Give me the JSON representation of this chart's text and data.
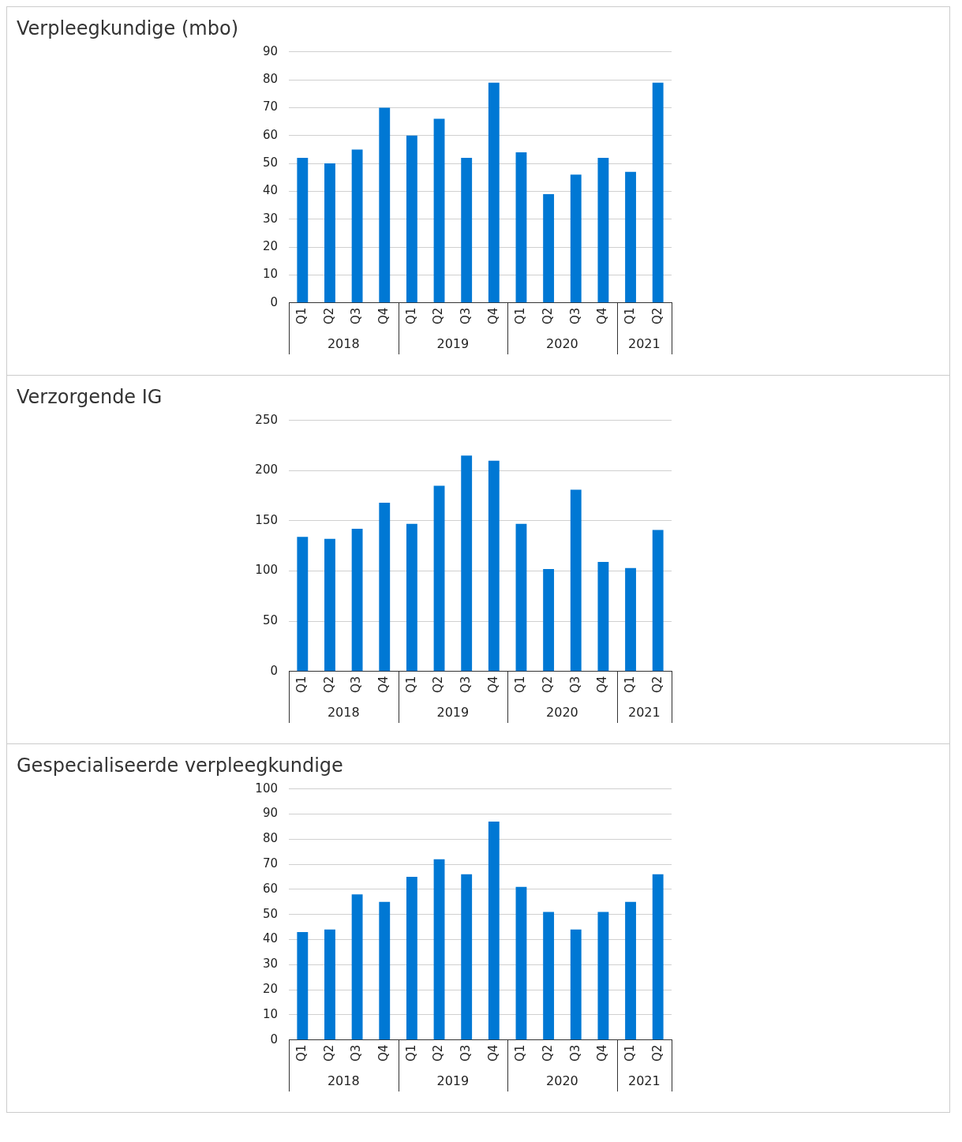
{
  "chart_data": [
    {
      "type": "bar",
      "title": "Verpleegkundige (mbo)",
      "categories": [
        "Q1",
        "Q2",
        "Q3",
        "Q4",
        "Q1",
        "Q2",
        "Q3",
        "Q4",
        "Q1",
        "Q2",
        "Q3",
        "Q4",
        "Q1",
        "Q2"
      ],
      "values": [
        52,
        50,
        55,
        70,
        60,
        66,
        52,
        79,
        54,
        39,
        46,
        52,
        47,
        79
      ],
      "color": "#0078d4",
      "ylim": [
        0,
        90
      ],
      "yticks": [
        0,
        10,
        20,
        30,
        40,
        50,
        60,
        70,
        80,
        90
      ],
      "grid": "y",
      "annotations": [
        "2018",
        "2019",
        "2020",
        "2021"
      ]
    },
    {
      "type": "bar",
      "title": "Verzorgende IG",
      "categories": [
        "Q1",
        "Q2",
        "Q3",
        "Q4",
        "Q1",
        "Q2",
        "Q3",
        "Q4",
        "Q1",
        "Q2",
        "Q3",
        "Q4",
        "Q1",
        "Q2"
      ],
      "values": [
        134,
        132,
        142,
        168,
        147,
        185,
        215,
        210,
        147,
        102,
        181,
        109,
        103,
        141
      ],
      "color": "#0078d4",
      "ylim": [
        0,
        250
      ],
      "yticks": [
        0,
        50,
        100,
        150,
        200,
        250
      ],
      "grid": "y",
      "annotations": [
        "2018",
        "2019",
        "2020",
        "2021"
      ]
    },
    {
      "type": "bar",
      "title": "Gespecialiseerde verpleegkundige",
      "categories": [
        "Q1",
        "Q2",
        "Q3",
        "Q4",
        "Q1",
        "Q2",
        "Q3",
        "Q4",
        "Q1",
        "Q2",
        "Q3",
        "Q4",
        "Q1",
        "Q2"
      ],
      "values": [
        43,
        44,
        58,
        55,
        65,
        72,
        66,
        87,
        61,
        51,
        44,
        51,
        55,
        66
      ],
      "color": "#0078d4",
      "ylim": [
        0,
        100
      ],
      "yticks": [
        0,
        10,
        20,
        30,
        40,
        50,
        60,
        70,
        80,
        90,
        100
      ],
      "grid": "y",
      "annotations": [
        "2018",
        "2019",
        "2020",
        "2021"
      ]
    }
  ]
}
